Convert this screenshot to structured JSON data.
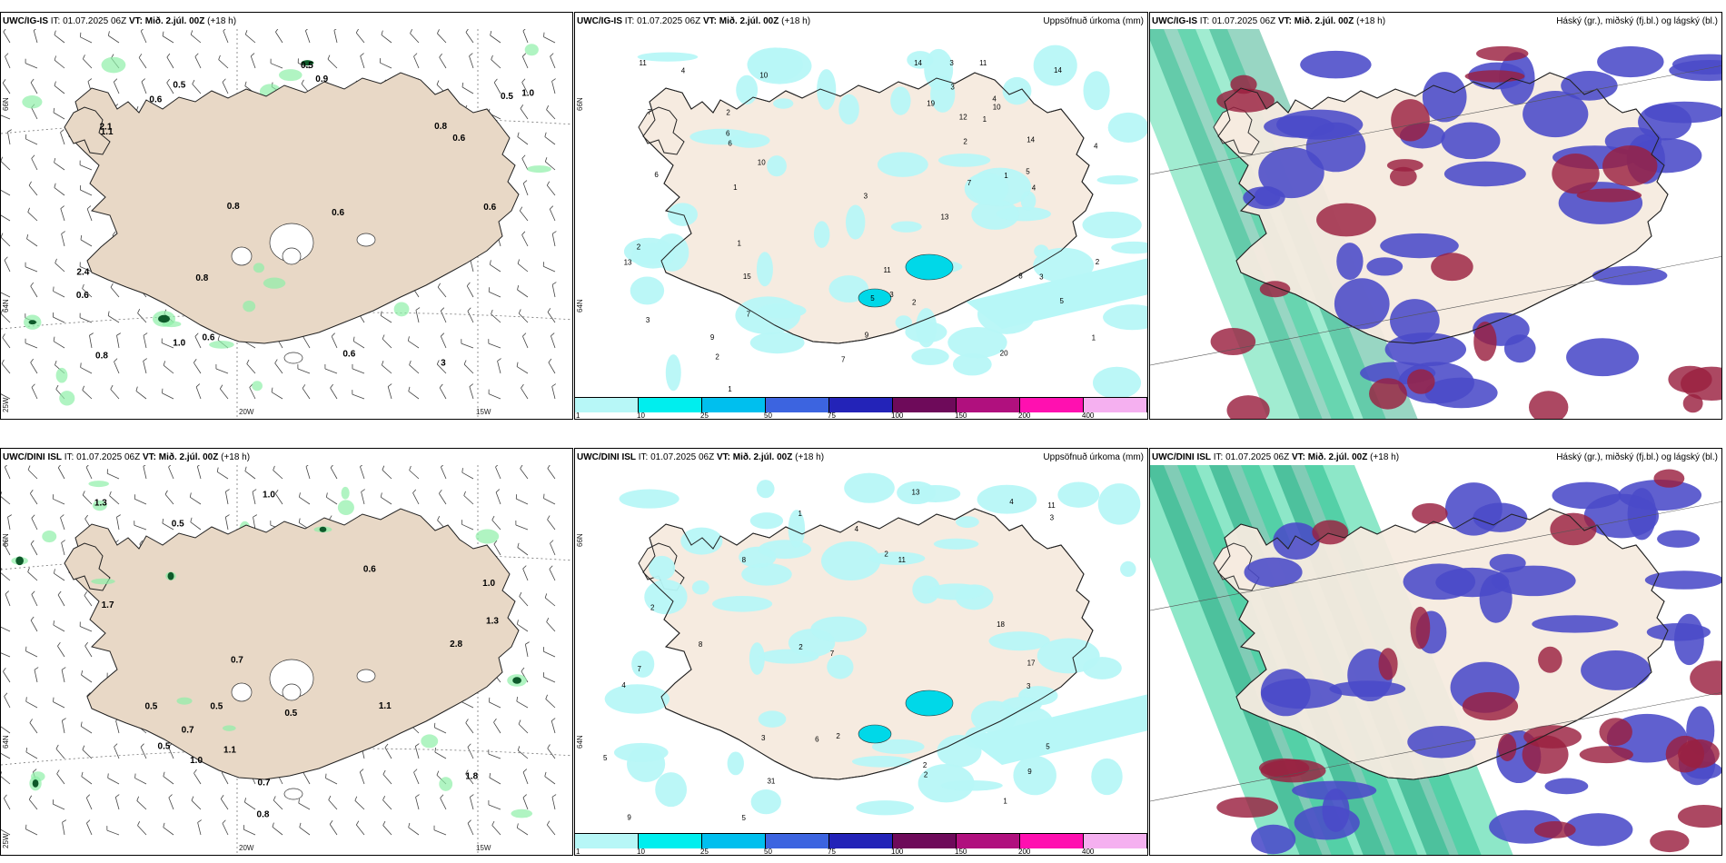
{
  "panels": [
    {
      "model": "UWC/IG-IS",
      "it": "IT: 01.07.2025 06Z",
      "vt_label": "VT:",
      "vt": "Mið. 2.júl. 00Z",
      "lead": "(+18 h)",
      "right": "",
      "lon_labels": [
        "20W",
        "15W"
      ],
      "lat_labels": [
        "66N",
        "64N",
        "25W"
      ],
      "values": [
        "0.6",
        "0.6",
        "0.8",
        "3",
        "0.6",
        "1.1",
        "0.6",
        "1.0",
        "0.8",
        "0.5",
        "0.8",
        "0.5",
        "2.1",
        "1.0",
        "0.6",
        "0.9",
        "0.8",
        "0.6",
        "0.5",
        "0.6",
        "2.4"
      ]
    },
    {
      "model": "UWC/IG-IS",
      "it": "IT: 01.07.2025 06Z",
      "vt_label": "VT:",
      "vt": "Mið. 2.júl. 00Z",
      "lead": "(+18 h)",
      "right": "Uppsöfnuð úrkoma (mm)",
      "lat_labels": [
        "66N",
        "64N"
      ],
      "values": [
        "1",
        "2",
        "1",
        "1",
        "2",
        "3",
        "11",
        "2",
        "7",
        "9",
        "8",
        "10",
        "7",
        "6",
        "2",
        "1",
        "4",
        "2",
        "3",
        "10",
        "3",
        "2",
        "5",
        "4",
        "3",
        "1",
        "6",
        "4",
        "7",
        "11",
        "13",
        "14",
        "20",
        "14",
        "15",
        "12",
        "10",
        "13",
        "14",
        "19",
        "6",
        "3",
        "5",
        "9",
        "11",
        "3",
        "7",
        "4",
        "5",
        "1"
      ]
    },
    {
      "model": "UWC/IG-IS",
      "it": "IT: 01.07.2025 06Z",
      "vt_label": "VT:",
      "vt": "Mið. 2.júl. 00Z",
      "lead": "(+18 h)",
      "right": "Háský (gr.), miðský (fj.bl.) og lágský (bl.)"
    },
    {
      "model": "UWC/DINI ISL",
      "it": "IT: 01.07.2025 06Z",
      "vt_label": "VT:",
      "vt": "Mið. 2.júl. 00Z",
      "lead": "(+18 h)",
      "right": "",
      "lon_labels": [
        "20W",
        "15W"
      ],
      "lat_labels": [
        "66N",
        "64N",
        "25W"
      ],
      "values": [
        "0.5",
        "0.5",
        "0.5",
        "0.7",
        "0.5",
        "1.0",
        "1.0",
        "1.1",
        "0.6",
        "0.7",
        "0.5",
        "1.8",
        "1.3",
        "0.8",
        "2.8",
        "1.1",
        "0.7",
        "1.3",
        "1.0",
        "1.7"
      ]
    },
    {
      "model": "UWC/DINI ISL",
      "it": "IT: 01.07.2025 06Z",
      "vt_label": "VT:",
      "vt": "Mið. 2.júl. 00Z",
      "lead": "(+18 h)",
      "right": "Uppsöfnuð úrkoma (mm)",
      "lat_labels": [
        "66N",
        "64N"
      ],
      "values": [
        "1",
        "2",
        "4",
        "3",
        "2",
        "9",
        "5",
        "7",
        "6",
        "4",
        "8",
        "3",
        "2",
        "11",
        "2",
        "5",
        "31",
        "18",
        "13",
        "17",
        "11",
        "5",
        "7",
        "8",
        "2",
        "4",
        "9",
        "2",
        "3",
        "1"
      ]
    },
    {
      "model": "UWC/DINI ISL",
      "it": "IT: 01.07.2025 06Z",
      "vt_label": "VT:",
      "vt": "Mið. 2.júl. 00Z",
      "lead": "(+18 h)",
      "right": "Háský (gr.), miðský (fj.bl.) og lágský (bl.)"
    }
  ],
  "legend": {
    "labels": [
      "1",
      "10",
      "25",
      "50",
      "75",
      "100",
      "150",
      "200",
      "400"
    ],
    "colors": [
      "#b7f7f7",
      "#00eeee",
      "#00bfee",
      "#3c64e0",
      "#2323b8",
      "#6e0a5a",
      "#b0107e",
      "#ff10b0",
      "#f5b0f0"
    ]
  },
  "colors": {
    "land": "#e8d8c6",
    "land_light": "#f6ebe0",
    "precip_light": "#b7f7f7",
    "green_dark": "#0e5a2a",
    "green_light": "#8ef0a8",
    "blue_cloud": "#4a4ac8",
    "red_cloud": "#9a2040",
    "teal": "#18b08a"
  }
}
